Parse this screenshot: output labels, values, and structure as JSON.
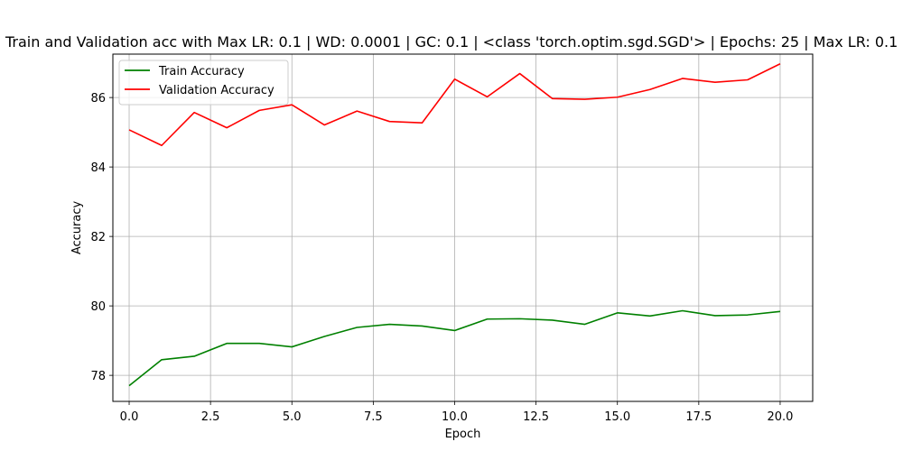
{
  "chart_data": {
    "type": "line",
    "title": "Train and Validation acc with Max LR: 0.1 | WD: 0.0001 | GC: 0.1 | <class 'torch.optim.sgd.SGD'> | Epochs: 25 | Max LR: 0.1 2",
    "xlabel": "Epoch",
    "ylabel": "Accuracy",
    "xlim": [
      -0.5,
      21.0
    ],
    "ylim": [
      77.25,
      87.25
    ],
    "xticks": [
      0.0,
      2.5,
      5.0,
      7.5,
      10.0,
      12.5,
      15.0,
      17.5,
      20.0
    ],
    "xtick_labels": [
      "0.0",
      "2.5",
      "5.0",
      "7.5",
      "10.0",
      "12.5",
      "15.0",
      "17.5",
      "20.0"
    ],
    "yticks": [
      78,
      80,
      82,
      84,
      86
    ],
    "ytick_labels": [
      "78",
      "80",
      "82",
      "84",
      "86"
    ],
    "grid": true,
    "legend_position": "upper-left",
    "x": [
      0,
      1,
      2,
      3,
      4,
      5,
      6,
      7,
      8,
      9,
      10,
      11,
      12,
      13,
      14,
      15,
      16,
      17,
      18,
      19,
      20
    ],
    "series": [
      {
        "name": "Train Accuracy",
        "color": "#008000",
        "values": [
          77.7,
          78.45,
          78.55,
          78.92,
          78.92,
          78.82,
          79.12,
          79.38,
          79.47,
          79.42,
          79.29,
          79.62,
          79.63,
          79.59,
          79.47,
          79.8,
          79.71,
          79.86,
          79.72,
          79.74,
          79.84
        ]
      },
      {
        "name": "Validation Accuracy",
        "color": "#ff0000",
        "values": [
          85.07,
          84.62,
          85.57,
          85.13,
          85.63,
          85.79,
          85.21,
          85.61,
          85.31,
          85.27,
          86.53,
          86.02,
          86.69,
          85.97,
          85.95,
          86.01,
          86.23,
          86.55,
          86.44,
          86.51,
          86.97
        ]
      }
    ]
  }
}
